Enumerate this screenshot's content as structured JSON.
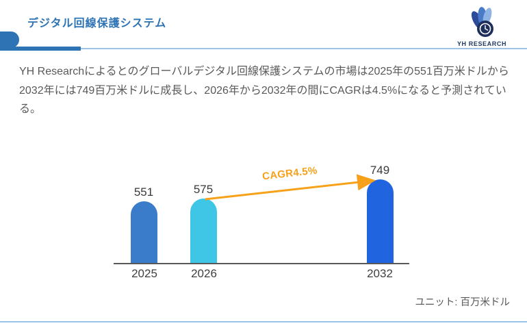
{
  "header": {
    "title": "デジタル回線保護システム",
    "logo_text": "YH RESEARCH"
  },
  "summary": "YH Researchによるとのグローバルデジタル回線保護システムの市場は2025年の551百万米ドルから2032年には749百万米ドルに成長し、2026年から2032年の間にCAGRは4.5%になると予測されている。",
  "chart_data": {
    "type": "bar",
    "title": "",
    "categories": [
      "2025",
      "2026",
      "2032"
    ],
    "values": [
      551,
      575,
      749
    ],
    "series_colors": [
      "#3A7CC9",
      "#3FC5E6",
      "#2164DF"
    ],
    "ylim": [
      0,
      800
    ],
    "grid": false,
    "legend": "none",
    "annotation": {
      "label": "CAGR4.5%",
      "from_category": "2026",
      "to_category": "2032",
      "color": "#F7A11A"
    },
    "unit_label": "ユニット: 百万米ドル"
  },
  "colors": {
    "accent_blue": "#2E74B5",
    "light_blue_rule": "#9DC3E6",
    "axis_gray": "#58595B",
    "text_gray": "#595959",
    "logo_navy": "#1F3864"
  }
}
